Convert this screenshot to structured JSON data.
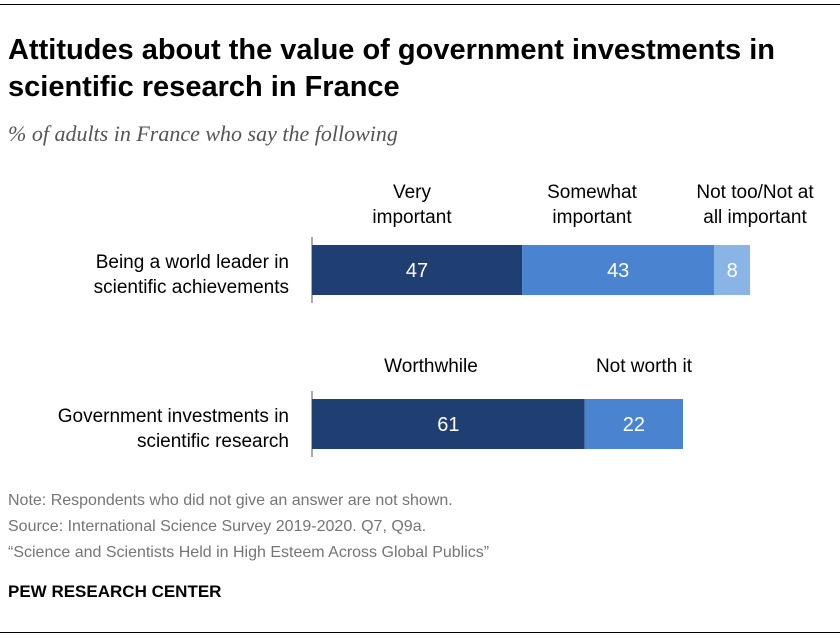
{
  "title": "Attitudes about the value of government investments in scientific research in France",
  "subtitle": "% of adults in France who say the following",
  "notes": {
    "note": "Note: Respondents who did not give an answer are not shown.",
    "source": "Source: International Science Survey 2019-2020. Q7, Q9a.",
    "report": "“Science and Scientists Held in High Esteem Across Global Publics”"
  },
  "brand": "PEW RESEARCH CENTER",
  "chart_data": {
    "type": "bar",
    "orientation": "horizontal",
    "stacked": true,
    "xlim": [
      0,
      100
    ],
    "rows": [
      {
        "label": [
          "Being a world leader in",
          "scientific achievements"
        ],
        "segments": [
          {
            "name": [
              "Very",
              "important"
            ],
            "value": 47,
            "color": "#1f3f73"
          },
          {
            "name": [
              "Somewhat",
              "important"
            ],
            "value": 43,
            "color": "#4a83d0"
          },
          {
            "name": [
              "Not too/Not at",
              "all important"
            ],
            "value": 8,
            "color": "#8ab4e6"
          }
        ]
      },
      {
        "label": [
          "Government investments in",
          "scientific research"
        ],
        "segments": [
          {
            "name": [
              "Worthwhile"
            ],
            "value": 61,
            "color": "#1f3f73"
          },
          {
            "name": [
              "Not worth it"
            ],
            "value": 22,
            "color": "#4a83d0"
          }
        ]
      }
    ]
  }
}
